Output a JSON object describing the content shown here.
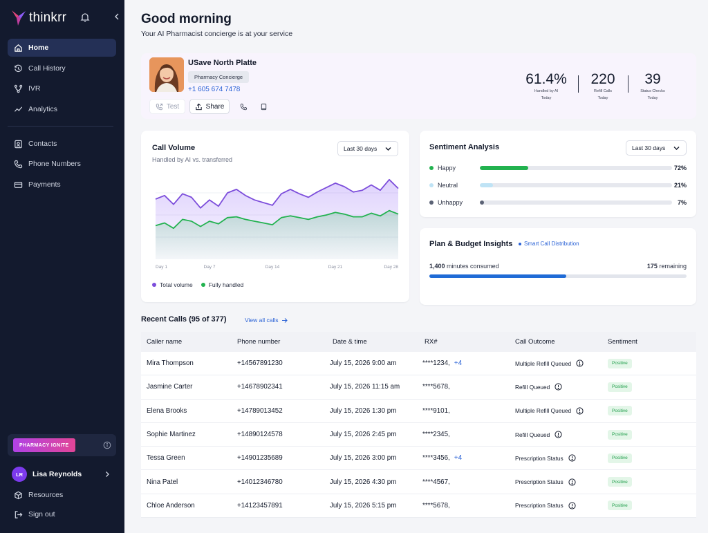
{
  "brand": {
    "name": "thinkrr"
  },
  "sidebar": {
    "primary": [
      {
        "label": "Home",
        "icon": "home-icon",
        "active": true
      },
      {
        "label": "Call History",
        "icon": "history-icon"
      },
      {
        "label": "IVR",
        "icon": "ivr-icon"
      },
      {
        "label": "Analytics",
        "icon": "analytics-icon"
      }
    ],
    "secondary": [
      {
        "label": "Contacts",
        "icon": "contacts-icon"
      },
      {
        "label": "Phone Numbers",
        "icon": "phone-icon"
      },
      {
        "label": "Payments",
        "icon": "card-icon"
      }
    ],
    "promo_label": "PHARMACY IGNITE",
    "user": {
      "initials": "LR",
      "name": "Lisa Reynolds"
    },
    "footer": [
      {
        "label": "Resources",
        "icon": "cube-icon"
      },
      {
        "label": "Sign out",
        "icon": "signout-icon"
      }
    ]
  },
  "header": {
    "greeting": "Good morning",
    "subtitle": "Your AI Pharmacist concierge is at your service"
  },
  "profile": {
    "name": "USave North Platte",
    "tag": "Pharmacy Concierge",
    "phone": "+1 605 674 7478",
    "buttons": {
      "test": "Test",
      "share": "Share"
    },
    "stats": [
      {
        "value": "61.4%",
        "label1": "Handled by AI",
        "label2": "Today"
      },
      {
        "value": "220",
        "label1": "Refill Calls",
        "label2": "Today"
      },
      {
        "value": "39",
        "label1": "Status Checks",
        "label2": "Today"
      }
    ]
  },
  "call_volume": {
    "title": "Call Volume",
    "subtitle": "Handled by AI vs. transferred",
    "range": "Last 30 days",
    "legend": [
      "Total volume",
      "Fully handled"
    ]
  },
  "chart_data": {
    "type": "area",
    "x_tick_labels": [
      "Day 1",
      "Day 7",
      "Day 14",
      "Day 21",
      "Day 28"
    ],
    "x": [
      1,
      2,
      3,
      4,
      5,
      6,
      7,
      8,
      9,
      10,
      11,
      12,
      13,
      14,
      15,
      16,
      17,
      18,
      19,
      20,
      21,
      22,
      23,
      24,
      25,
      26,
      27,
      28
    ],
    "series": [
      {
        "name": "Total volume",
        "color": "#7c4ddb",
        "values": [
          68,
          72,
          62,
          74,
          70,
          58,
          67,
          60,
          75,
          79,
          72,
          67,
          64,
          61,
          74,
          79,
          74,
          70,
          76,
          81,
          86,
          82,
          76,
          78,
          84,
          78,
          90,
          80
        ]
      },
      {
        "name": "Fully handled",
        "color": "#22b24f",
        "values": [
          38,
          41,
          35,
          45,
          43,
          37,
          43,
          40,
          47,
          48,
          45,
          43,
          41,
          39,
          47,
          49,
          47,
          45,
          48,
          50,
          53,
          51,
          48,
          48,
          52,
          49,
          55,
          51
        ]
      }
    ],
    "ylim": [
      0,
      100
    ],
    "grid": true
  },
  "sentiment": {
    "title": "Sentiment Analysis",
    "range": "Last 30 days",
    "rows": [
      {
        "label": "Happy",
        "pct": "72%",
        "value": 0.25,
        "color": "#22b24f"
      },
      {
        "label": "Neutral",
        "pct": "21%",
        "value": 0.07,
        "color": "#bfe3f5"
      },
      {
        "label": "Unhappy",
        "pct": "7%",
        "value": 0.02,
        "color": "#5b6275"
      }
    ]
  },
  "plan": {
    "title": "Plan & Budget Insights",
    "tag": "Smart Call Distribution",
    "consumed_value": "1,400",
    "consumed_text": "minutes consumed",
    "remaining_value": "175",
    "remaining_text": "remaining",
    "fill": 0.533
  },
  "recent_calls": {
    "title": "Recent Calls (95 of 377)",
    "view_all": "View all calls",
    "columns": [
      "Caller name",
      "Phone number",
      "Date & time",
      "RX#",
      "Call Outcome",
      "Sentiment"
    ],
    "rows": [
      {
        "name": "Mira Thompson",
        "phone": "+14567891230",
        "date": "July 15, 2026 9:00 am",
        "rx": "****1234,",
        "rx_more": "+4",
        "outcome": "Multiple Refill Queued",
        "sentiment": "Positive"
      },
      {
        "name": "Jasmine Carter",
        "phone": "+14678902341",
        "date": "July 15, 2026 11:15 am",
        "rx": "****5678,",
        "rx_more": "",
        "outcome": "Refill Queued",
        "sentiment": "Positive"
      },
      {
        "name": "Elena Brooks",
        "phone": "+14789013452",
        "date": "July 15, 2026 1:30 pm",
        "rx": "****9101,",
        "rx_more": "",
        "outcome": "Multiple Refill Queued",
        "sentiment": "Positive"
      },
      {
        "name": "Sophie Martinez",
        "phone": "+14890124578",
        "date": "July 15, 2026 2:45 pm",
        "rx": "****2345,",
        "rx_more": "",
        "outcome": "Refill Queued",
        "sentiment": "Positive"
      },
      {
        "name": "Tessa Green",
        "phone": "+14901235689",
        "date": "July 15, 2026 3:00 pm",
        "rx": "****3456,",
        "rx_more": "+4",
        "outcome": "Prescription Status",
        "sentiment": "Positive"
      },
      {
        "name": "Nina Patel",
        "phone": "+14012346780",
        "date": "July 15, 2026 4:30 pm",
        "rx": "****4567,",
        "rx_more": "",
        "outcome": "Prescription Status",
        "sentiment": "Positive"
      },
      {
        "name": "Chloe Anderson",
        "phone": "+14123457891",
        "date": "July 15, 2026 5:15 pm",
        "rx": "****5678,",
        "rx_more": "",
        "outcome": "Prescription Status",
        "sentiment": "Positive"
      }
    ]
  }
}
